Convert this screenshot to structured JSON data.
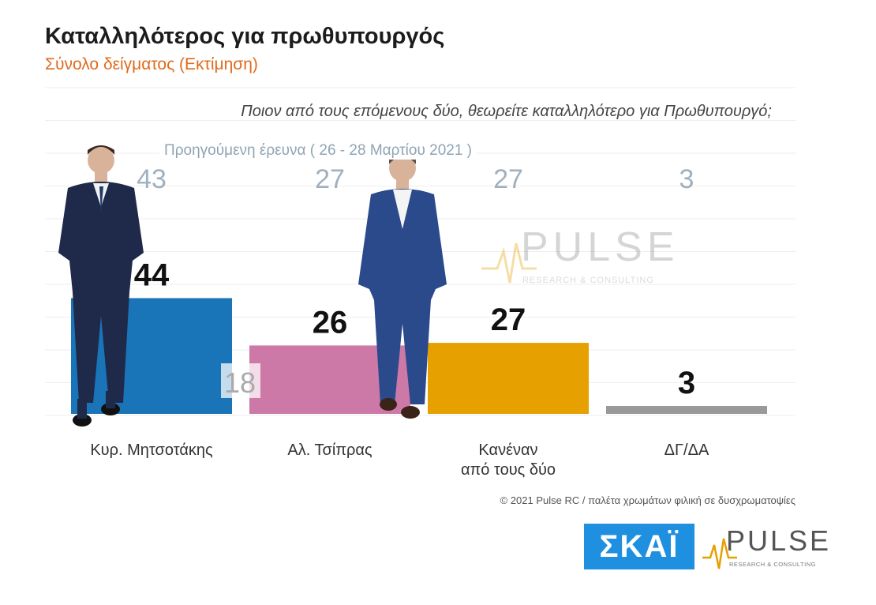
{
  "title": "Καταλληλότερος για πρωθυπουργός",
  "subtitle": "Σύνολο δείγματος (Εκτίμηση)",
  "question": "Ποιον από τους επόμενους δύο, θεωρείτε καταλληλότερο για Πρωθυπουργό;",
  "previous_label": "Προηγούμενη έρευνα ( 26 - 28 Μαρτίου 2021 )",
  "copyright": "© 2021 Pulse RC / παλέτα χρωμάτων φιλική σε δυσχρωματοψίες",
  "logos": {
    "skai": "ΣΚΑΪ",
    "pulse": "PULSE",
    "pulse_sub": "RESEARCH & CONSULTING"
  },
  "chart_data": {
    "type": "bar",
    "categories": [
      "Κυρ. Μητσοτάκης",
      "Αλ. Τσίπρας",
      "Κανέναν από τους δύο",
      "ΔΓ/ΔΑ"
    ],
    "category_lines": [
      [
        "Κυρ. Μητσοτάκης"
      ],
      [
        "Αλ. Τσίπρας"
      ],
      [
        "Κανέναν",
        "από τους δύο"
      ],
      [
        "ΔΓ/ΔΑ"
      ]
    ],
    "values": [
      44,
      26,
      27,
      3
    ],
    "previous_values": [
      43,
      27,
      27,
      3
    ],
    "extra_label": {
      "category": "Αλ. Τσίπρας",
      "value": 18
    },
    "colors": [
      "#1a74b8",
      "#cc79a7",
      "#e6a000",
      "#999999"
    ],
    "ylim": [
      0,
      60
    ],
    "grid": true,
    "legend": "none"
  }
}
